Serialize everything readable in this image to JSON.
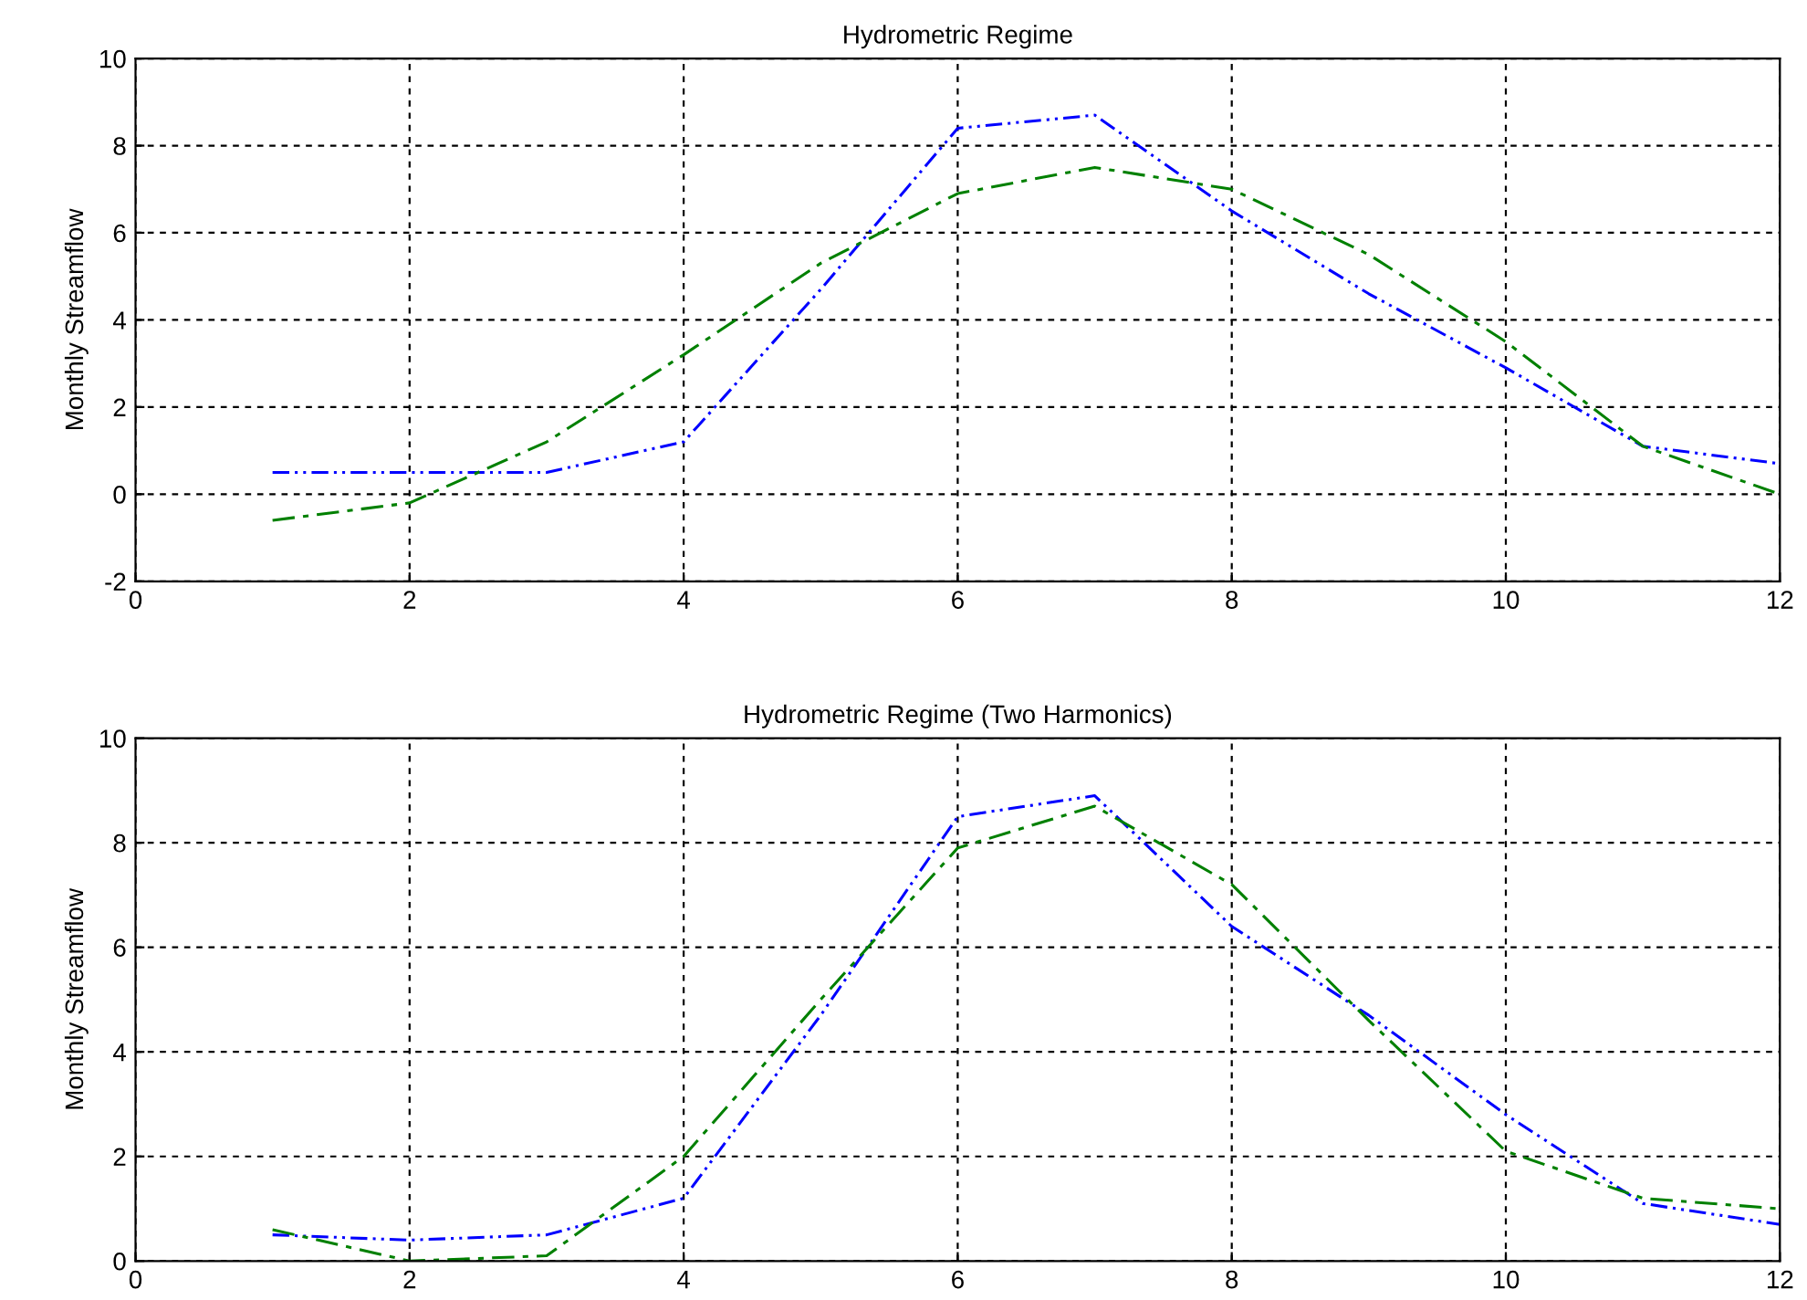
{
  "chart_data": [
    {
      "type": "line",
      "title": "Hydrometric Regime",
      "ylabel": "Monthly Streamflow",
      "x": [
        1,
        2,
        3,
        4,
        5,
        6,
        7,
        8,
        9,
        10,
        11,
        12
      ],
      "series": [
        {
          "color": "#0000ff",
          "line_style": "dotted",
          "values": [
            0.5,
            0.5,
            0.5,
            1.2,
            4.7,
            8.4,
            8.7,
            6.5,
            4.6,
            2.9,
            1.1,
            0.7
          ]
        },
        {
          "color": "#008000",
          "line_style": "dashed",
          "values": [
            -0.6,
            -0.2,
            1.2,
            3.2,
            5.3,
            6.9,
            7.5,
            7.0,
            5.5,
            3.5,
            1.1,
            0.0
          ]
        }
      ],
      "xlim": [
        0,
        12
      ],
      "xticks": [
        0,
        2,
        4,
        6,
        8,
        10,
        12
      ],
      "ylim": [
        -2,
        10
      ],
      "yticks": [
        -2,
        0,
        2,
        4,
        6,
        8,
        10
      ],
      "grid": true
    },
    {
      "type": "line",
      "title": "Hydrometric Regime (Two Harmonics)",
      "ylabel": "Monthly Streamflow",
      "x": [
        1,
        2,
        3,
        4,
        5,
        6,
        7,
        8,
        9,
        10,
        11,
        12
      ],
      "series": [
        {
          "color": "#0000ff",
          "line_style": "dotted",
          "values": [
            0.5,
            0.4,
            0.5,
            1.2,
            4.7,
            8.5,
            8.9,
            6.4,
            4.7,
            2.8,
            1.1,
            0.7
          ]
        },
        {
          "color": "#008000",
          "line_style": "dashed",
          "values": [
            0.6,
            0.0,
            0.1,
            2.0,
            5.0,
            7.9,
            8.7,
            7.2,
            4.6,
            2.1,
            1.2,
            1.0
          ]
        }
      ],
      "xlim": [
        0,
        12
      ],
      "xticks": [
        0,
        2,
        4,
        6,
        8,
        10,
        12
      ],
      "ylim": [
        0,
        10
      ],
      "yticks": [
        0,
        2,
        4,
        6,
        8,
        10
      ],
      "grid": true
    }
  ]
}
